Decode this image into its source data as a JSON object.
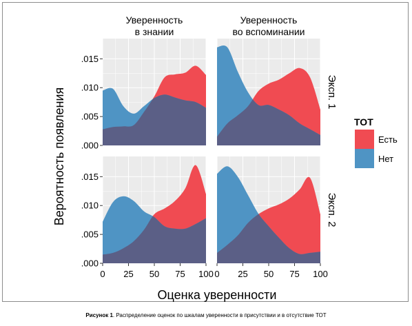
{
  "colors": {
    "est": "#f04b52",
    "net": "#4f94c4",
    "overlap": "#5b5f86",
    "panel_bg": "#ebebeb",
    "grid": "#ffffff",
    "axis_text": "#000000"
  },
  "caption": {
    "label": "Рисунок 1",
    "text": ". Распределение оценок по шкалам уверенности в присутствии и в отсутствие ТОТ"
  },
  "chart_data": {
    "type": "area",
    "title": "",
    "xlabel": "Оценка уверенности",
    "ylabel": "Вероятность появления",
    "xlim": [
      0,
      100
    ],
    "ylim": [
      0,
      0.0185
    ],
    "xticks": [
      0,
      25,
      50,
      75,
      100
    ],
    "xtick_labels": [
      "0",
      "25",
      "50",
      "75",
      "100"
    ],
    "yticks": [
      0,
      0.005,
      0.01,
      0.015
    ],
    "ytick_labels": [
      ".000",
      ".005",
      ".010",
      ".015"
    ],
    "grid": true,
    "legend": {
      "title": "TOT",
      "placement": "right",
      "entries": [
        {
          "label": "Есть",
          "color": "#f04b52"
        },
        {
          "label": "Нет",
          "color": "#4f94c4"
        }
      ]
    },
    "facet_columns": [
      "Уверенность\nв знании",
      "Уверенность\nво вспоминании"
    ],
    "facet_rows": [
      "Эксп. 1",
      "Эксп. 2"
    ],
    "x": [
      0,
      10,
      20,
      30,
      40,
      50,
      60,
      70,
      80,
      90,
      100
    ],
    "panels": [
      {
        "row": 0,
        "col": 0,
        "series": [
          {
            "name": "Есть",
            "values": [
              0.0028,
              0.0032,
              0.0033,
              0.0035,
              0.0058,
              0.0085,
              0.0118,
              0.0123,
              0.0126,
              0.0138,
              0.0122
            ]
          },
          {
            "name": "Нет",
            "values": [
              0.0095,
              0.0098,
              0.0068,
              0.0055,
              0.0068,
              0.0082,
              0.0088,
              0.0083,
              0.0078,
              0.0075,
              0.0065
            ]
          }
        ]
      },
      {
        "row": 0,
        "col": 1,
        "series": [
          {
            "name": "Есть",
            "values": [
              0.0015,
              0.0038,
              0.0052,
              0.0068,
              0.0094,
              0.0107,
              0.0114,
              0.0125,
              0.0134,
              0.0118,
              0.0062
            ]
          },
          {
            "name": "Нет",
            "values": [
              0.017,
              0.017,
              0.0128,
              0.0092,
              0.007,
              0.007,
              0.0062,
              0.0052,
              0.0038,
              0.0028,
              0.0018
            ]
          }
        ]
      },
      {
        "row": 1,
        "col": 0,
        "series": [
          {
            "name": "Есть",
            "values": [
              0.0015,
              0.0018,
              0.0026,
              0.0038,
              0.0058,
              0.0085,
              0.0095,
              0.0108,
              0.013,
              0.017,
              0.012
            ]
          },
          {
            "name": "Нет",
            "values": [
              0.0072,
              0.0106,
              0.0116,
              0.0108,
              0.009,
              0.008,
              0.0064,
              0.006,
              0.006,
              0.0068,
              0.0078
            ]
          }
        ]
      },
      {
        "row": 1,
        "col": 1,
        "series": [
          {
            "name": "Есть",
            "values": [
              0.0018,
              0.0032,
              0.0048,
              0.007,
              0.0085,
              0.0095,
              0.0102,
              0.0112,
              0.0128,
              0.0148,
              0.0085
            ]
          },
          {
            "name": "Нет",
            "values": [
              0.0155,
              0.0168,
              0.015,
              0.0118,
              0.0086,
              0.0064,
              0.0044,
              0.0026,
              0.0016,
              0.0018,
              0.002
            ]
          }
        ]
      }
    ]
  }
}
